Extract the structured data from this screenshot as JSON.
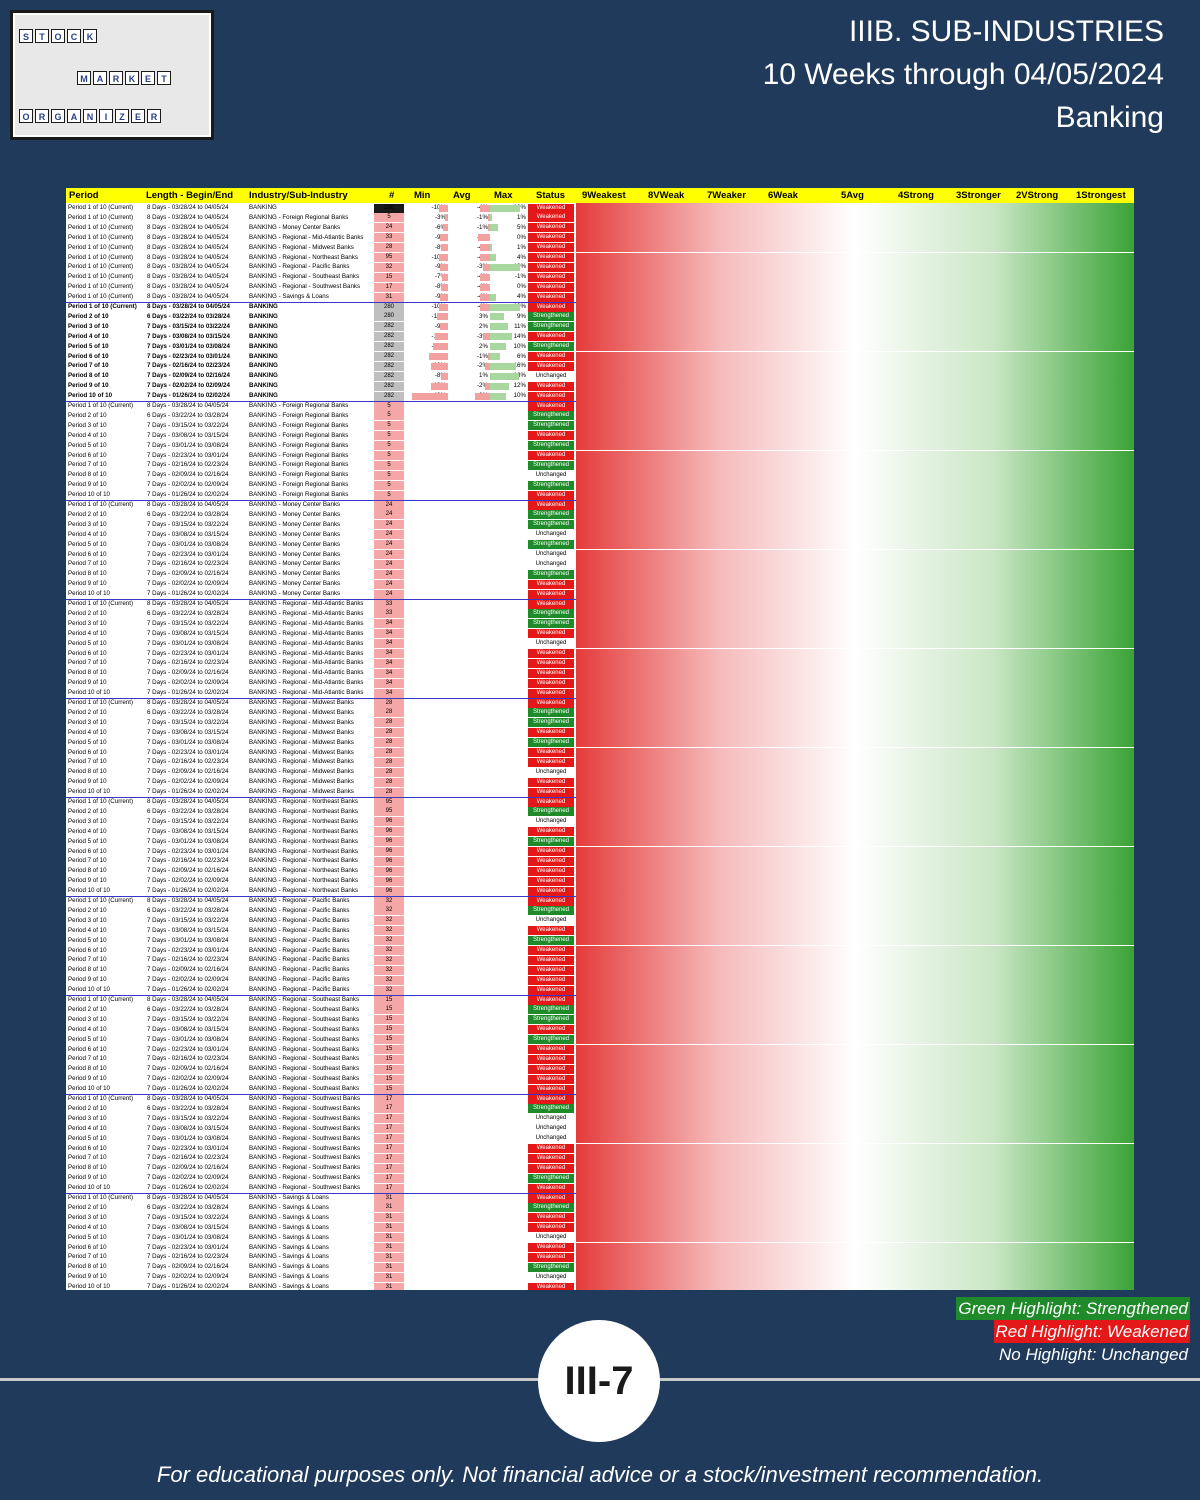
{
  "logo": {
    "row1": [
      "S",
      "T",
      "O",
      "C",
      "K"
    ],
    "row2": [
      "M",
      "A",
      "R",
      "K",
      "E",
      "T"
    ],
    "row3": [
      "O",
      "R",
      "G",
      "A",
      "N",
      "I",
      "Z",
      "E",
      "R"
    ]
  },
  "title": {
    "line1": "IIIB. SUB-INDUSTRIES",
    "line2": "10 Weeks through 04/05/2024",
    "line3": "Banking"
  },
  "header": {
    "period": "Period",
    "length": "Length - Begin/End",
    "industry": "Industry/Sub-Industry",
    "num": "#",
    "min": "Min",
    "avg": "Avg",
    "max": "Max",
    "status": "Status",
    "c9": "9Weakest",
    "c8": "8VWeak",
    "c7": "7Weaker",
    "c6": "6Weak",
    "c5": "5Avg",
    "c4": "4Strong",
    "c3": "3Stronger",
    "c2": "2VStrong",
    "c1": "1Strongest"
  },
  "groups": [
    {
      "name": "BANKING",
      "rows": [
        {
          "p": "Period 1 of 10 (Current)",
          "l": "8 Days - 03/28/24 to 04/05/24",
          "i": "BANKING",
          "n": "280",
          "mn": "-10%",
          "av": "-4%",
          "mx": "19%",
          "s": "Weakened"
        },
        {
          "p": "Period 1 of 10 (Current)",
          "l": "8 Days - 03/28/24 to 04/05/24",
          "i": "BANKING - Foreign Regional Banks",
          "n": "5",
          "mn": "-3%",
          "av": "-1%",
          "mx": "1%",
          "s": "Weakened"
        },
        {
          "p": "Period 1 of 10 (Current)",
          "l": "8 Days - 03/28/24 to 04/05/24",
          "i": "BANKING - Money Center Banks",
          "n": "24",
          "mn": "-6%",
          "av": "-1%",
          "mx": "5%",
          "s": "Weakened"
        },
        {
          "p": "Period 1 of 10 (Current)",
          "l": "8 Days - 03/28/24 to 04/05/24",
          "i": "BANKING - Regional - Mid-Atlantic Banks",
          "n": "33",
          "mn": "-9%",
          "av": "-5%",
          "mx": "0%",
          "s": "Weakened"
        },
        {
          "p": "Period 1 of 10 (Current)",
          "l": "8 Days - 03/28/24 to 04/05/24",
          "i": "BANKING - Regional - Midwest Banks",
          "n": "28",
          "mn": "-8%",
          "av": "-4%",
          "mx": "1%",
          "s": "Weakened"
        },
        {
          "p": "Period 1 of 10 (Current)",
          "l": "8 Days - 03/28/24 to 04/05/24",
          "i": "BANKING - Regional - Northeast Banks",
          "n": "95",
          "mn": "-10%",
          "av": "-4%",
          "mx": "4%",
          "s": "Weakened"
        },
        {
          "p": "Period 1 of 10 (Current)",
          "l": "8 Days - 03/28/24 to 04/05/24",
          "i": "BANKING - Regional - Pacific Banks",
          "n": "32",
          "mn": "-9%",
          "av": "-3%",
          "mx": "19%",
          "s": "Weakened"
        },
        {
          "p": "Period 1 of 10 (Current)",
          "l": "8 Days - 03/28/24 to 04/05/24",
          "i": "BANKING - Regional - Southeast Banks",
          "n": "15",
          "mn": "-7%",
          "av": "-4%",
          "mx": "-1%",
          "s": "Weakened"
        },
        {
          "p": "Period 1 of 10 (Current)",
          "l": "8 Days - 03/28/24 to 04/05/24",
          "i": "BANKING - Regional - Southwest Banks",
          "n": "17",
          "mn": "-8%",
          "av": "-4%",
          "mx": "0%",
          "s": "Weakened"
        },
        {
          "p": "Period 1 of 10 (Current)",
          "l": "8 Days - 03/28/24 to 04/05/24",
          "i": "BANKING - Savings & Loans",
          "n": "31",
          "mn": "-9%",
          "av": "-4%",
          "mx": "4%",
          "s": "Weakened"
        }
      ]
    },
    {
      "name": "BANKING history",
      "rows": [
        {
          "p": "Period 1 of 10 (Current)",
          "l": "8 Days - 03/28/24 to 04/05/24",
          "i": "BANKING",
          "n": "280",
          "mn": "-10%",
          "av": "-4%",
          "mx": "19%",
          "s": "Weakened"
        },
        {
          "p": "Period 2 of 10",
          "l": "6 Days - 03/22/24 to 03/28/24",
          "i": "BANKING",
          "n": "280",
          "mn": "-12%",
          "av": "3%",
          "mx": "9%",
          "s": "Strengthened"
        },
        {
          "p": "Period 3 of 10",
          "l": "7 Days - 03/15/24 to 03/22/24",
          "i": "BANKING",
          "n": "282",
          "mn": "-9%",
          "av": "2%",
          "mx": "11%",
          "s": "Strengthened"
        },
        {
          "p": "Period 4 of 10",
          "l": "7 Days - 03/08/24 to 03/15/24",
          "i": "BANKING",
          "n": "282",
          "mn": "-14%",
          "av": "-3%",
          "mx": "14%",
          "s": "Weakened"
        },
        {
          "p": "Period 5 of 10",
          "l": "7 Days - 03/01/24 to 03/08/24",
          "i": "BANKING",
          "n": "282",
          "mn": "-17%",
          "av": "2%",
          "mx": "10%",
          "s": "Strengthened"
        },
        {
          "p": "Period 6 of 10",
          "l": "7 Days - 02/23/24 to 03/01/24",
          "i": "BANKING",
          "n": "282",
          "mn": "-21%",
          "av": "-1%",
          "mx": "6%",
          "s": "Weakened"
        },
        {
          "p": "Period 7 of 10",
          "l": "7 Days - 02/16/24 to 02/23/24",
          "i": "BANKING",
          "n": "282",
          "mn": "-19%",
          "av": "-2%",
          "mx": "16%",
          "s": "Weakened"
        },
        {
          "p": "Period 8 of 10",
          "l": "7 Days - 02/09/24 to 02/16/24",
          "i": "BANKING",
          "n": "282",
          "mn": "-8%",
          "av": "1%",
          "mx": "18%",
          "s": "Unchanged"
        },
        {
          "p": "Period 9 of 10",
          "l": "7 Days - 02/02/24 to 02/09/24",
          "i": "BANKING",
          "n": "282",
          "mn": "-19%",
          "av": "-2%",
          "mx": "12%",
          "s": "Weakened"
        },
        {
          "p": "Period 10 of 10",
          "l": "7 Days - 01/26/24 to 02/02/24",
          "i": "BANKING",
          "n": "282",
          "mn": "-43%",
          "av": "-6%",
          "mx": "10%",
          "s": "Weakened"
        }
      ]
    }
  ],
  "sub": [
    {
      "name": "Foreign Regional Banks",
      "n": [
        "5",
        "5",
        "5",
        "5",
        "5",
        "5",
        "5",
        "5",
        "5",
        "5"
      ],
      "s": [
        "Weakened",
        "Strengthened",
        "Strengthened",
        "Weakened",
        "Strengthened",
        "Weakened",
        "Strengthened",
        "Unchanged",
        "Strengthened",
        "Weakened"
      ]
    },
    {
      "name": "Money Center Banks",
      "n": [
        "24",
        "24",
        "24",
        "24",
        "24",
        "24",
        "24",
        "24",
        "24",
        "24"
      ],
      "s": [
        "Weakened",
        "Strengthened",
        "Strengthened",
        "Unchanged",
        "Strengthened",
        "Unchanged",
        "Unchanged",
        "Strengthened",
        "Weakened",
        "Weakened"
      ]
    },
    {
      "name": "Regional - Mid-Atlantic Banks",
      "n": [
        "33",
        "33",
        "34",
        "34",
        "34",
        "34",
        "34",
        "34",
        "34",
        "34"
      ],
      "s": [
        "Weakened",
        "Strengthened",
        "Strengthened",
        "Weakened",
        "Unchanged",
        "Weakened",
        "Weakened",
        "Weakened",
        "Weakened",
        "Weakened"
      ]
    },
    {
      "name": "Regional - Midwest Banks",
      "n": [
        "28",
        "28",
        "28",
        "28",
        "28",
        "28",
        "28",
        "28",
        "28",
        "28"
      ],
      "s": [
        "Weakened",
        "Strengthened",
        "Strengthened",
        "Weakened",
        "Strengthened",
        "Weakened",
        "Weakened",
        "Unchanged",
        "Weakened",
        "Weakened"
      ]
    },
    {
      "name": "Regional - Northeast Banks",
      "n": [
        "95",
        "95",
        "96",
        "96",
        "96",
        "96",
        "96",
        "96",
        "96",
        "96"
      ],
      "s": [
        "Weakened",
        "Strengthened",
        "Unchanged",
        "Weakened",
        "Strengthened",
        "Weakened",
        "Weakened",
        "Weakened",
        "Weakened",
        "Weakened"
      ]
    },
    {
      "name": "Regional - Pacific Banks",
      "n": [
        "32",
        "32",
        "32",
        "32",
        "32",
        "32",
        "32",
        "32",
        "32",
        "32"
      ],
      "s": [
        "Weakened",
        "Strengthened",
        "Unchanged",
        "Weakened",
        "Strengthened",
        "Weakened",
        "Weakened",
        "Weakened",
        "Weakened",
        "Weakened"
      ]
    },
    {
      "name": "Regional - Southeast Banks",
      "n": [
        "15",
        "15",
        "15",
        "15",
        "15",
        "15",
        "15",
        "15",
        "15",
        "15"
      ],
      "s": [
        "Weakened",
        "Strengthened",
        "Strengthened",
        "Weakened",
        "Strengthened",
        "Weakened",
        "Weakened",
        "Weakened",
        "Weakened",
        "Weakened"
      ]
    },
    {
      "name": "Regional - Southwest Banks",
      "n": [
        "17",
        "17",
        "17",
        "17",
        "17",
        "17",
        "17",
        "17",
        "17",
        "17"
      ],
      "s": [
        "Weakened",
        "Strengthened",
        "Unchanged",
        "Unchanged",
        "Unchanged",
        "Weakened",
        "Weakened",
        "Weakened",
        "Strengthened",
        "Weakened"
      ]
    },
    {
      "name": "Savings & Loans",
      "n": [
        "31",
        "31",
        "31",
        "31",
        "31",
        "31",
        "31",
        "31",
        "31",
        "31"
      ],
      "s": [
        "Weakened",
        "Strengthened",
        "Weakened",
        "Weakened",
        "Unchanged",
        "Weakened",
        "Weakened",
        "Strengthened",
        "Unchanged",
        "Weakened"
      ]
    }
  ],
  "periods": [
    {
      "p": "Period 1 of 10 (Current)",
      "l": "8 Days - 03/28/24 to 04/05/24"
    },
    {
      "p": "Period 2 of 10",
      "l": "6 Days - 03/22/24 to 03/28/24"
    },
    {
      "p": "Period 3 of 10",
      "l": "7 Days - 03/15/24 to 03/22/24"
    },
    {
      "p": "Period 4 of 10",
      "l": "7 Days - 03/08/24 to 03/15/24"
    },
    {
      "p": "Period 5 of 10",
      "l": "7 Days - 03/01/24 to 03/08/24"
    },
    {
      "p": "Period 6 of 10",
      "l": "7 Days - 02/23/24 to 03/01/24"
    },
    {
      "p": "Period 7 of 10",
      "l": "7 Days - 02/16/24 to 02/23/24"
    },
    {
      "p": "Period 8 of 10",
      "l": "7 Days - 02/09/24 to 02/16/24"
    },
    {
      "p": "Period 9 of 10",
      "l": "7 Days - 02/02/24 to 02/09/24"
    },
    {
      "p": "Period 10 of 10",
      "l": "7 Days - 01/26/24 to 02/02/24"
    }
  ],
  "legend": {
    "green": "Green Highlight: Strengthened",
    "red": "Red Highlight: Weakened",
    "none": "No Highlight: Unchanged"
  },
  "badge": "III-7",
  "footer": "For educational purposes only. Not financial advice or a stock/investment recommendation.",
  "colors": {
    "background": "#1f3a5a",
    "weak": "#e41818",
    "strong": "#1f8a2a",
    "header": "#ffff00"
  }
}
